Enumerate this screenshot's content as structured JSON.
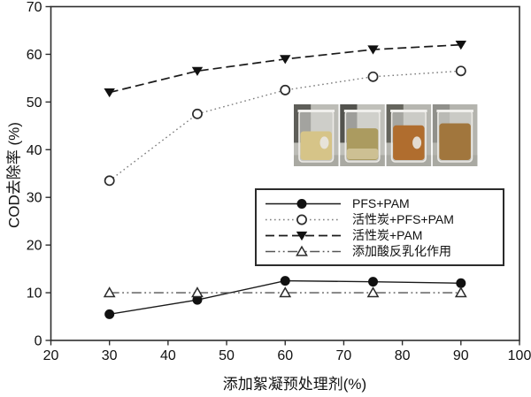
{
  "chart_data": {
    "type": "line",
    "title": "",
    "xlabel": "添加絮凝预处理剂(%)",
    "ylabel": "COD去除率 (%)",
    "xlim": [
      20,
      100
    ],
    "ylim": [
      0,
      70
    ],
    "xticks": [
      20,
      30,
      40,
      50,
      60,
      70,
      80,
      90,
      100
    ],
    "yticks": [
      0,
      10,
      20,
      30,
      40,
      50,
      60,
      70
    ],
    "grid": false,
    "legend_position": "inside-lower-right",
    "x": [
      30,
      45,
      60,
      75,
      90
    ],
    "series": [
      {
        "name": "PFS+PAM",
        "values": [
          5.5,
          8.5,
          12.5,
          12.3,
          12
        ],
        "line": "solid",
        "marker": "filled-circle",
        "color": "#1a1a1a"
      },
      {
        "name": "活性炭+PFS+PAM",
        "values": [
          33.5,
          47.5,
          52.5,
          55.3,
          56.5
        ],
        "line": "dotted",
        "marker": "open-circle",
        "color": "#7d7d7d"
      },
      {
        "name": "活性炭+PAM",
        "values": [
          52,
          56.5,
          59,
          61,
          62
        ],
        "line": "dashed",
        "marker": "filled-triangle-down",
        "color": "#1a1a1a"
      },
      {
        "name": "添加酸反乳化作用",
        "values": [
          10,
          10,
          10,
          10,
          10
        ],
        "line": "dash-dot-dot",
        "marker": "open-triangle-up",
        "color": "#555555"
      }
    ]
  },
  "inset_photo": {
    "panels": [
      {
        "bg": "#bcbcb6",
        "dark": "#4e4e49",
        "liquid": "#d6c488",
        "liquid_top": 0.42,
        "band": null,
        "label": true
      },
      {
        "bg": "#c0c0ba",
        "dark": "#3f3f3b",
        "liquid": "#ab9b60",
        "liquid_top": 0.36,
        "band": "#cdc093",
        "label": false
      },
      {
        "bg": "#b6b6b0",
        "dark": "#57574f",
        "liquid": "#b06d2e",
        "liquid_top": 0.3,
        "band": null,
        "label": true
      },
      {
        "bg": "#b4b4ae",
        "dark": "#8a8a85",
        "liquid": "#a1763d",
        "liquid_top": 0.26,
        "band": null,
        "label": false
      }
    ]
  },
  "colors": {
    "axis": "#2e2e2e",
    "tick_text": "#111111"
  }
}
